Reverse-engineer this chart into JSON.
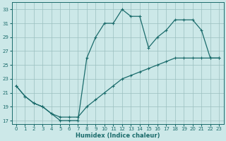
{
  "xlabel": "Humidex (Indice chaleur)",
  "bg_color": "#cce8e8",
  "grid_color": "#9bbfbf",
  "line_color": "#1a6b6b",
  "marker": "+",
  "xlim": [
    -0.5,
    23.5
  ],
  "ylim": [
    16.5,
    34
  ],
  "xticks": [
    0,
    1,
    2,
    3,
    4,
    5,
    6,
    7,
    8,
    9,
    10,
    11,
    12,
    13,
    14,
    15,
    16,
    17,
    18,
    19,
    20,
    21,
    22,
    23
  ],
  "yticks": [
    17,
    19,
    21,
    23,
    25,
    27,
    29,
    31,
    33
  ],
  "line1_x": [
    0,
    1,
    2,
    3,
    4,
    5,
    6,
    7,
    8,
    9,
    10,
    11,
    12,
    13,
    14,
    15,
    16,
    17,
    18,
    19,
    20,
    21,
    22,
    23
  ],
  "line1_y": [
    22,
    20.5,
    19.5,
    19,
    18,
    17,
    17,
    17,
    26,
    29,
    31,
    31,
    33,
    32,
    32,
    27.5,
    29,
    30,
    31.5,
    31.5,
    31.5,
    30,
    26,
    26
  ],
  "line2_x": [
    0,
    1,
    2,
    3,
    4,
    5,
    6,
    7,
    8,
    9,
    10,
    11,
    12,
    13,
    14,
    15,
    16,
    17,
    18,
    19,
    20,
    21,
    22,
    23
  ],
  "line2_y": [
    22,
    20.5,
    19.5,
    19,
    18,
    17.5,
    17.5,
    17.5,
    19,
    20,
    21,
    22,
    23,
    23.5,
    24,
    24.5,
    25,
    25.5,
    26,
    26,
    26,
    26,
    26,
    26
  ]
}
